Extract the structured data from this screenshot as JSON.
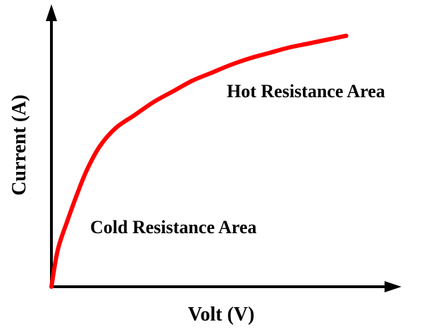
{
  "chart_data": {
    "type": "line",
    "title": "",
    "xlabel": "Volt (V)",
    "ylabel": "Current (A)",
    "xticks": [],
    "yticks": [],
    "grid": false,
    "legend": "none",
    "series": [
      {
        "color": "#ff0000",
        "x": [
          0,
          0.02,
          0.05,
          0.08,
          0.11,
          0.15,
          0.2,
          0.26,
          0.32,
          0.38,
          0.44,
          0.5,
          0.56,
          0.62,
          0.68,
          0.74,
          0.8,
          0.86,
          0.92
        ],
        "y": [
          0,
          0.14,
          0.25,
          0.35,
          0.44,
          0.53,
          0.6,
          0.65,
          0.7,
          0.74,
          0.78,
          0.81,
          0.84,
          0.865,
          0.885,
          0.905,
          0.92,
          0.935,
          0.95
        ]
      }
    ],
    "annotations": [
      {
        "text": "Hot Resistance Area"
      },
      {
        "text": "Cold Resistance Area"
      }
    ]
  }
}
